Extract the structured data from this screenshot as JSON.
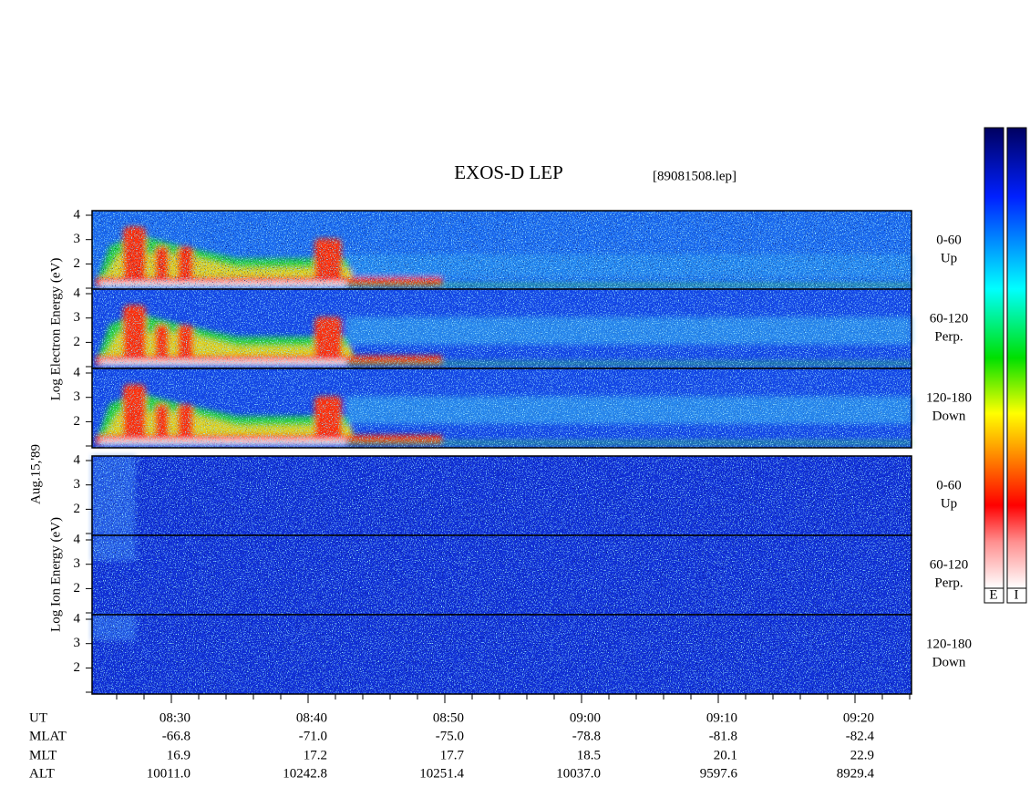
{
  "title": "EXOS-D LEP",
  "file": "[89081508.lep]",
  "electron_label": "Log  Electron  Energy  (eV)",
  "ion_label": "Log  Ion  Energy  (eV)",
  "date": "Aug.15,'89",
  "energy_ticks": [
    "4",
    "3",
    "2"
  ],
  "panels": [
    {
      "range": "0-60",
      "dir": "Up"
    },
    {
      "range": "60-120",
      "dir": "Perp."
    },
    {
      "range": "120-180",
      "dir": "Down"
    },
    {
      "range": "0-60",
      "dir": "Up"
    },
    {
      "range": "60-120",
      "dir": "Perp."
    },
    {
      "range": "120-180",
      "dir": "Down"
    }
  ],
  "orbit": {
    "labels": [
      "UT",
      "MLAT",
      "MLT",
      "ALT"
    ],
    "columns": [
      [
        "08:30",
        "-66.8",
        "16.9",
        "10011.0"
      ],
      [
        "08:40",
        "-71.0",
        "17.2",
        "10242.8"
      ],
      [
        "08:50",
        "-75.0",
        "17.7",
        "10251.4"
      ],
      [
        "09:00",
        "-78.8",
        "18.5",
        "10037.0"
      ],
      [
        "09:10",
        "-81.8",
        "20.1",
        "9597.6"
      ],
      [
        "09:20",
        "-82.4",
        "22.9",
        "8929.4"
      ]
    ]
  },
  "colorbar_labels": [
    "E",
    "I"
  ]
}
